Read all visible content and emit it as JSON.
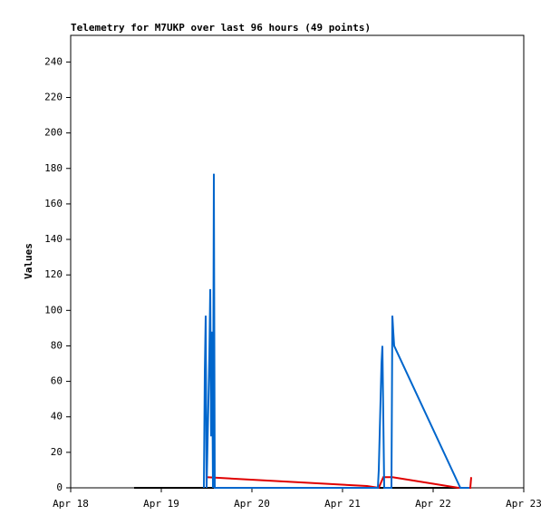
{
  "chart_data": {
    "type": "line",
    "title": "Telemetry for M7UKP over last 96 hours (49 points)",
    "y_label": "Values",
    "xlim": [
      18,
      23
    ],
    "xticks": [
      {
        "value": 18,
        "label": "Apr 18"
      },
      {
        "value": 19,
        "label": "Apr 19"
      },
      {
        "value": 20,
        "label": "Apr 20"
      },
      {
        "value": 21,
        "label": "Apr 21"
      },
      {
        "value": 22,
        "label": "Apr 22"
      },
      {
        "value": 23,
        "label": "Apr 23"
      }
    ],
    "ylim": [
      0,
      255
    ],
    "yticks": [
      0,
      20,
      40,
      60,
      80,
      100,
      120,
      140,
      160,
      180,
      200,
      220,
      240
    ],
    "series": [
      {
        "color": "#000000",
        "x": [
          18.7,
          22.4
        ],
        "values": [
          0,
          0
        ]
      },
      {
        "color": "#e00000",
        "x": [
          19.5,
          21.27,
          21.4,
          21.45,
          21.55,
          22.28,
          22.41,
          22.42
        ],
        "values": [
          6,
          1,
          0,
          6,
          6,
          0,
          0,
          6
        ]
      },
      {
        "color": "#0066cc",
        "x": [
          19.47,
          19.48,
          19.49,
          19.5,
          19.53,
          19.54,
          19.55,
          19.56,
          19.57,
          19.58,
          19.59,
          21.39,
          21.4,
          21.41,
          21.42,
          21.43,
          21.44,
          21.45,
          21.46,
          21.54,
          21.55,
          21.56,
          21.57,
          22.3,
          22.4
        ],
        "values": [
          0,
          65,
          97,
          0,
          73,
          112,
          29,
          88,
          0,
          177,
          0,
          0,
          10,
          30,
          50,
          70,
          80,
          40,
          0,
          0,
          97,
          88,
          80,
          0,
          0
        ]
      }
    ]
  }
}
